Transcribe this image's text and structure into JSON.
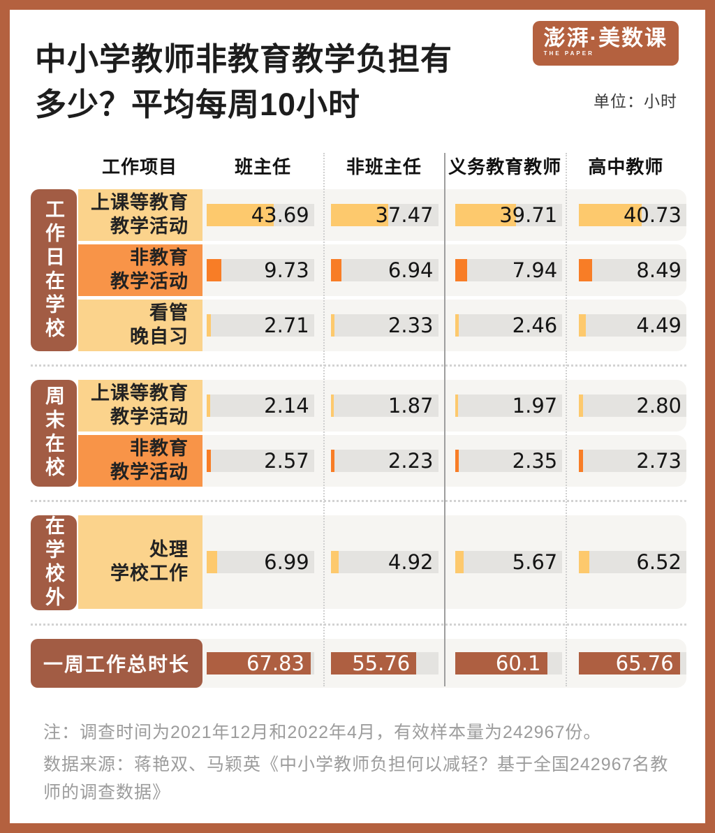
{
  "header": {
    "title_line1": "中小学教师非教育教学负担有",
    "title_line2": "多少？平均每周10小时",
    "logo_main": "澎湃·美数课",
    "logo_sub": "THE PAPER",
    "unit_label": "单位：小时"
  },
  "columns": {
    "item": "工作项目",
    "cols": [
      "班主任",
      "非班主任",
      "义务教育教师",
      "高中教师"
    ]
  },
  "chart_data": {
    "type": "bar",
    "title": "中小学教师非教育教学负担有多少？平均每周10小时",
    "unit": "小时",
    "max_scale": 70,
    "column_headers": [
      "班主任",
      "非班主任",
      "义务教育教师",
      "高中教师"
    ],
    "groups": [
      {
        "name": "工作日在学校",
        "rows": [
          {
            "label": "上课等教育教学活动",
            "label_lines": [
              "上课等教育",
              "教学活动"
            ],
            "color": "yellow",
            "values": [
              "43.69",
              "37.47",
              "39.71",
              "40.73"
            ]
          },
          {
            "label": "非教育教学活动",
            "label_lines": [
              "非教育",
              "教学活动"
            ],
            "color": "orange",
            "values": [
              "9.73",
              "6.94",
              "7.94",
              "8.49"
            ]
          },
          {
            "label": "看管晚自习",
            "label_lines": [
              "看管",
              "晚自习"
            ],
            "color": "yellow",
            "values": [
              "2.71",
              "2.33",
              "2.46",
              "4.49"
            ]
          }
        ]
      },
      {
        "name": "周末在校",
        "rows": [
          {
            "label": "上课等教育教学活动",
            "label_lines": [
              "上课等教育",
              "教学活动"
            ],
            "color": "yellow",
            "values": [
              "2.14",
              "1.87",
              "1.97",
              "2.80"
            ]
          },
          {
            "label": "非教育教学活动",
            "label_lines": [
              "非教育",
              "教学活动"
            ],
            "color": "orange",
            "values": [
              "2.57",
              "2.23",
              "2.35",
              "2.73"
            ]
          }
        ]
      },
      {
        "name": "在学校外",
        "tall": true,
        "rows": [
          {
            "label": "处理学校工作",
            "label_lines": [
              "处理",
              "学校工作"
            ],
            "color": "yellow",
            "values": [
              "6.99",
              "4.92",
              "5.67",
              "6.52"
            ]
          }
        ]
      }
    ],
    "total": {
      "label": "一周工作总时长",
      "color": "brown",
      "values": [
        "67.83",
        "55.76",
        "60.1",
        "65.76"
      ]
    }
  },
  "footer": {
    "note": "注：调查时间为2021年12月和2022年4月，有效样本量为242967份。",
    "source": "数据来源：蒋艳双、马颖英《中小学教师负担何以减轻？基于全国242967名教师的调查数据》"
  },
  "colors": {
    "frame": "#B4613F",
    "group_brown": "#A25C44",
    "label_yellow": "#FBD38C",
    "label_orange": "#F89448",
    "bar_yellow": "#FDC96D",
    "bar_orange": "#F87D26",
    "bar_brown": "#AE5F41",
    "track_gray": "#E4E3E0",
    "row_stripe": "#F6F5F2"
  }
}
